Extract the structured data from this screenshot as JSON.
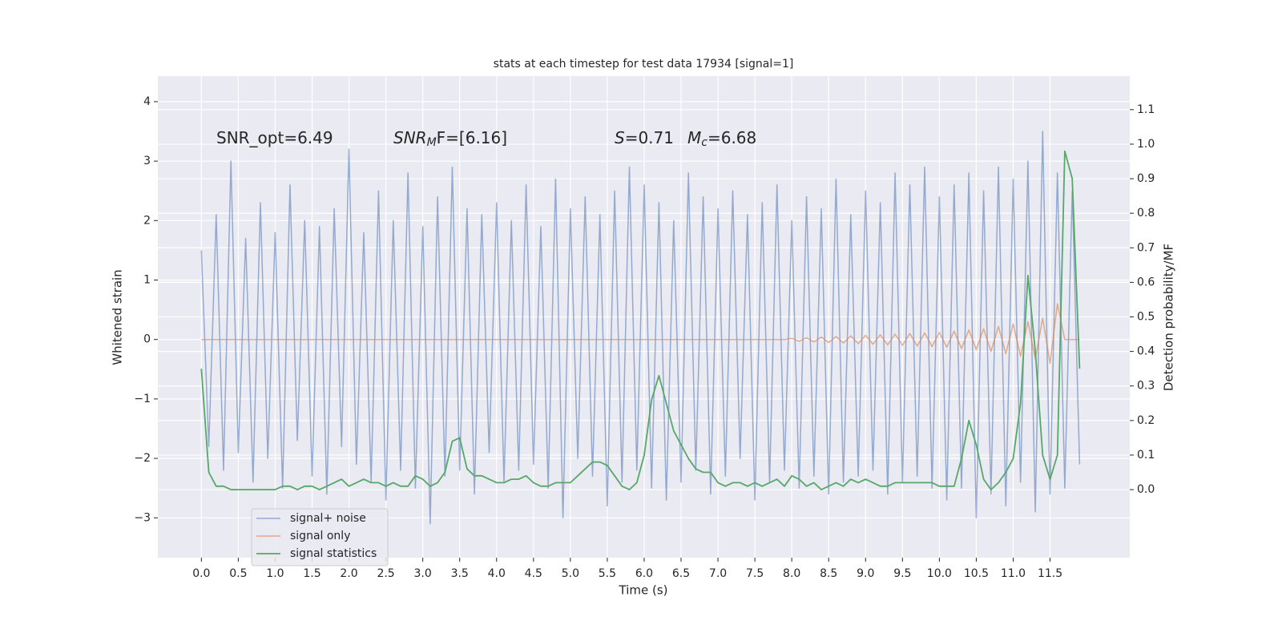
{
  "chart_data": {
    "type": "line",
    "title": "stats at each timestep for test data 17934 [signal=1]",
    "xlabel": "Time (s)",
    "ylabel": "Whitened strain",
    "y2label": "Detection probability/MF",
    "grid": true,
    "legend": "lower left",
    "annotations": [
      {
        "text": "SNR_opt=6.49"
      },
      {
        "main": "SNR",
        "sub": "M",
        "tail": "F=[6.16]"
      },
      {
        "main": "S",
        "tail": "=0.71"
      },
      {
        "main": "M",
        "sub": "c",
        "tail": "=6.68"
      }
    ],
    "xlim": [
      -0.59,
      12.58
    ],
    "ylim": [
      -3.67,
      4.43
    ],
    "y2lim": [
      -0.197,
      1.197
    ],
    "xticks": [
      {
        "value": 0,
        "label": "0.0"
      },
      0.5,
      {
        "value": 1,
        "label": "1.0"
      },
      1.5,
      {
        "value": 2,
        "label": "2.0"
      },
      2.5,
      {
        "value": 3,
        "label": "3.0"
      },
      3.5,
      {
        "value": 4,
        "label": "4.0"
      },
      4.5,
      {
        "value": 5,
        "label": "5.0"
      },
      5.5,
      {
        "value": 6,
        "label": "6.0"
      },
      6.5,
      {
        "value": 7,
        "label": "7.0"
      },
      7.5,
      {
        "value": 8,
        "label": "8.0"
      },
      8.5,
      {
        "value": 9,
        "label": "9.0"
      },
      9.5,
      {
        "value": 10,
        "label": "10.0"
      },
      10.5,
      {
        "value": 11,
        "label": "11.0"
      },
      11.5
    ],
    "yticks": [
      {
        "value": -3,
        "label": "−3"
      },
      {
        "value": -2,
        "label": "−2"
      },
      {
        "value": -1,
        "label": "−1"
      },
      0,
      1,
      2,
      3,
      4
    ],
    "y2ticks": [
      {
        "value": 0,
        "label": "0.0"
      },
      0.1,
      0.2,
      0.3,
      0.4,
      0.5,
      0.6,
      0.7,
      0.8,
      0.9,
      {
        "value": 1,
        "label": "1.0"
      },
      1.1
    ],
    "x": [
      0.0,
      0.1,
      0.2,
      0.3,
      0.4,
      0.5,
      0.6,
      0.7,
      0.8,
      0.9,
      1.0,
      1.1,
      1.2,
      1.3,
      1.4,
      1.5,
      1.6,
      1.7,
      1.8,
      1.9,
      2.0,
      2.1,
      2.2,
      2.3,
      2.4,
      2.5,
      2.6,
      2.7,
      2.8,
      2.9,
      3.0,
      3.1,
      3.2,
      3.3,
      3.4,
      3.5,
      3.6,
      3.7,
      3.8,
      3.9,
      4.0,
      4.1,
      4.2,
      4.3,
      4.4,
      4.5,
      4.6,
      4.7,
      4.8,
      4.9,
      5.0,
      5.1,
      5.2,
      5.3,
      5.4,
      5.5,
      5.6,
      5.7,
      5.8,
      5.9,
      6.0,
      6.1,
      6.2,
      6.3,
      6.4,
      6.5,
      6.6,
      6.7,
      6.8,
      6.9,
      7.0,
      7.1,
      7.2,
      7.3,
      7.4,
      7.5,
      7.6,
      7.7,
      7.8,
      7.9,
      8.0,
      8.1,
      8.2,
      8.3,
      8.4,
      8.5,
      8.6,
      8.7,
      8.8,
      8.9,
      9.0,
      9.1,
      9.2,
      9.3,
      9.4,
      9.5,
      9.6,
      9.7,
      9.8,
      9.9,
      10.0,
      10.1,
      10.2,
      10.3,
      10.4,
      10.5,
      10.6,
      10.7,
      10.8,
      10.9,
      11.0,
      11.1,
      11.2,
      11.3,
      11.4,
      11.5,
      11.6,
      11.7,
      11.8,
      11.9
    ],
    "series": [
      {
        "name": "signal+ noise",
        "color": "#4c72b0",
        "values": [
          1.5,
          -1.8,
          2.1,
          -2.2,
          3.0,
          -1.9,
          1.7,
          -2.4,
          2.3,
          -2.0,
          1.8,
          -2.5,
          2.6,
          -1.7,
          2.0,
          -2.3,
          1.9,
          -2.6,
          2.2,
          -1.8,
          3.2,
          -2.1,
          1.8,
          -2.4,
          2.5,
          -2.7,
          2.0,
          -2.2,
          2.8,
          -2.5,
          1.9,
          -3.1,
          2.4,
          -2.3,
          2.9,
          -2.2,
          2.2,
          -2.6,
          2.1,
          -1.9,
          2.3,
          -2.4,
          2.0,
          -2.2,
          2.6,
          -2.1,
          1.9,
          -2.5,
          2.7,
          -3.0,
          2.2,
          -2.0,
          2.4,
          -2.3,
          2.1,
          -2.8,
          2.5,
          -2.4,
          2.9,
          -2.2,
          2.6,
          -2.5,
          2.3,
          -2.7,
          2.0,
          -2.4,
          2.8,
          -2.2,
          2.4,
          -2.6,
          2.2,
          -2.3,
          2.5,
          -2.0,
          2.1,
          -2.7,
          2.3,
          -2.4,
          2.6,
          -2.2,
          2.0,
          -2.5,
          2.4,
          -2.3,
          2.2,
          -2.6,
          2.7,
          -2.4,
          2.1,
          -2.3,
          2.5,
          -2.2,
          2.3,
          -2.6,
          2.8,
          -2.4,
          2.6,
          -2.3,
          2.9,
          -2.5,
          2.4,
          -2.7,
          2.6,
          -2.5,
          2.8,
          -3.0,
          2.5,
          -2.6,
          2.9,
          -2.8,
          2.7,
          -2.4,
          3.0,
          -2.9,
          3.5,
          -2.6,
          2.8,
          -2.5,
          2.5,
          -2.1
        ]
      },
      {
        "name": "signal only",
        "color": "#dd8452",
        "values": [
          0,
          0,
          0,
          0,
          0,
          0,
          0,
          0,
          0,
          0,
          0,
          0,
          0,
          0,
          0,
          0,
          0,
          0,
          0,
          0,
          0,
          0,
          0,
          0,
          0,
          0,
          0,
          0,
          0,
          0,
          0,
          0,
          0,
          0,
          0,
          0,
          0,
          0,
          0,
          0,
          0,
          0,
          0,
          0,
          0,
          0,
          0,
          0,
          0,
          0,
          0,
          0,
          0,
          0,
          0,
          0,
          0,
          0,
          0,
          0,
          0,
          0,
          0,
          0,
          0,
          0,
          0,
          0,
          0,
          0,
          0,
          0,
          0,
          0,
          0,
          0,
          0,
          0,
          0,
          0,
          0.02,
          -0.03,
          0.03,
          -0.04,
          0.04,
          -0.05,
          0.05,
          -0.06,
          0.06,
          -0.07,
          0.07,
          -0.08,
          0.08,
          -0.09,
          0.09,
          -0.1,
          0.1,
          -0.11,
          0.11,
          -0.12,
          0.12,
          -0.13,
          0.14,
          -0.15,
          0.16,
          -0.17,
          0.18,
          -0.2,
          0.22,
          -0.24,
          0.26,
          -0.28,
          0.3,
          -0.33,
          0.36,
          -0.4,
          0.6,
          0,
          0,
          0
        ]
      },
      {
        "name": "signal statistics",
        "color": "#55a868",
        "axis": "y2",
        "values": [
          0.35,
          0.05,
          0.01,
          0.01,
          0.0,
          0.0,
          0.0,
          0.0,
          0.0,
          0.0,
          0.0,
          0.01,
          0.01,
          0.0,
          0.01,
          0.01,
          0.0,
          0.01,
          0.02,
          0.03,
          0.01,
          0.02,
          0.03,
          0.02,
          0.02,
          0.01,
          0.02,
          0.01,
          0.01,
          0.04,
          0.03,
          0.01,
          0.02,
          0.05,
          0.14,
          0.15,
          0.06,
          0.04,
          0.04,
          0.03,
          0.02,
          0.02,
          0.03,
          0.03,
          0.04,
          0.02,
          0.01,
          0.01,
          0.02,
          0.02,
          0.02,
          0.04,
          0.06,
          0.08,
          0.08,
          0.07,
          0.04,
          0.01,
          0.0,
          0.02,
          0.1,
          0.26,
          0.33,
          0.25,
          0.17,
          0.13,
          0.09,
          0.06,
          0.05,
          0.05,
          0.02,
          0.01,
          0.02,
          0.02,
          0.01,
          0.02,
          0.01,
          0.02,
          0.03,
          0.01,
          0.04,
          0.03,
          0.01,
          0.02,
          0.0,
          0.01,
          0.02,
          0.01,
          0.03,
          0.02,
          0.03,
          0.02,
          0.01,
          0.01,
          0.02,
          0.02,
          0.02,
          0.02,
          0.02,
          0.02,
          0.01,
          0.01,
          0.01,
          0.09,
          0.2,
          0.13,
          0.03,
          0.0,
          0.02,
          0.05,
          0.09,
          0.25,
          0.62,
          0.4,
          0.1,
          0.03,
          0.1,
          0.98,
          0.9,
          0.35
        ]
      }
    ]
  }
}
